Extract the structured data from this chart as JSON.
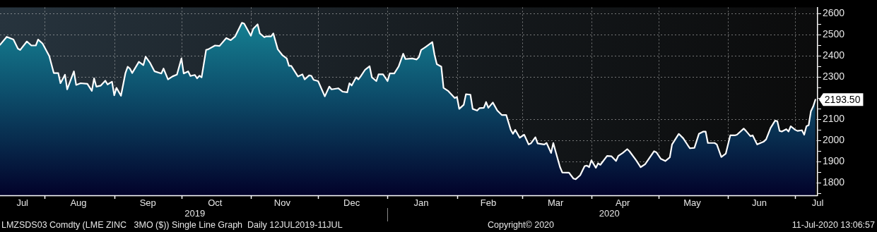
{
  "chart_data": {
    "type": "area",
    "x": [
      "2019-07-12",
      "2019-07-15",
      "2019-07-18",
      "2019-07-20",
      "2019-07-21",
      "2019-07-24",
      "2019-07-26",
      "2019-07-28",
      "2019-07-29",
      "2019-07-31",
      "2019-08-03",
      "2019-08-05",
      "2019-08-07",
      "2019-08-08",
      "2019-08-10",
      "2019-08-11",
      "2019-08-14",
      "2019-08-15",
      "2019-08-17",
      "2019-08-20",
      "2019-08-22",
      "2019-08-23",
      "2019-08-24",
      "2019-08-26",
      "2019-08-28",
      "2019-08-29",
      "2019-08-31",
      "2019-09-01",
      "2019-09-02",
      "2019-09-04",
      "2019-09-06",
      "2019-09-07",
      "2019-09-08",
      "2019-09-09",
      "2019-09-12",
      "2019-09-14",
      "2019-09-15",
      "2019-09-17",
      "2019-09-19",
      "2019-09-22",
      "2019-09-23",
      "2019-09-25",
      "2019-09-27",
      "2019-09-29",
      "2019-10-01",
      "2019-10-02",
      "2019-10-04",
      "2019-10-05",
      "2019-10-07",
      "2019-10-08",
      "2019-10-09",
      "2019-10-10",
      "2019-10-12",
      "2019-10-13",
      "2019-10-16",
      "2019-10-18",
      "2019-10-21",
      "2019-10-23",
      "2019-10-25",
      "2019-10-28",
      "2019-10-29",
      "2019-11-01",
      "2019-11-02",
      "2019-11-04",
      "2019-11-05",
      "2019-11-07",
      "2019-11-08",
      "2019-11-10",
      "2019-11-11",
      "2019-11-13",
      "2019-11-15",
      "2019-11-17",
      "2019-11-18",
      "2019-11-19",
      "2019-11-22",
      "2019-11-24",
      "2019-11-25",
      "2019-11-27",
      "2019-11-28",
      "2019-11-29",
      "2019-12-01",
      "2019-12-04",
      "2019-12-06",
      "2019-12-07",
      "2019-12-10",
      "2019-12-12",
      "2019-12-14",
      "2019-12-15",
      "2019-12-16",
      "2019-12-18",
      "2019-12-19",
      "2019-12-20",
      "2019-12-22",
      "2019-12-24",
      "2019-12-25",
      "2019-12-27",
      "2019-12-28",
      "2019-12-30",
      "2020-01-01",
      "2020-01-02",
      "2020-01-04",
      "2020-01-06",
      "2020-01-08",
      "2020-01-09",
      "2020-01-12",
      "2020-01-14",
      "2020-01-15",
      "2020-01-16",
      "2020-01-18",
      "2020-01-21",
      "2020-01-22",
      "2020-01-23",
      "2020-01-25",
      "2020-01-26",
      "2020-01-28",
      "2020-01-31",
      "2020-02-01",
      "2020-02-02",
      "2020-02-04",
      "2020-02-05",
      "2020-02-07",
      "2020-02-08",
      "2020-02-10",
      "2020-02-11",
      "2020-02-13",
      "2020-02-14",
      "2020-02-15",
      "2020-02-17",
      "2020-02-19",
      "2020-02-21",
      "2020-02-23",
      "2020-02-25",
      "2020-02-26",
      "2020-02-27",
      "2020-02-29",
      "2020-03-02",
      "2020-03-04",
      "2020-03-05",
      "2020-03-07",
      "2020-03-08",
      "2020-03-11",
      "2020-03-12",
      "2020-03-14",
      "2020-03-15",
      "2020-03-16",
      "2020-03-18",
      "2020-03-19",
      "2020-03-22",
      "2020-03-24",
      "2020-03-25",
      "2020-03-27",
      "2020-03-29",
      "2020-03-30",
      "2020-03-31",
      "2020-04-01",
      "2020-04-03",
      "2020-04-04",
      "2020-04-05",
      "2020-04-08",
      "2020-04-10",
      "2020-04-12",
      "2020-04-13",
      "2020-04-15",
      "2020-04-17",
      "2020-04-18",
      "2020-04-21",
      "2020-04-23",
      "2020-04-25",
      "2020-04-29",
      "2020-04-30",
      "2020-05-02",
      "2020-05-04",
      "2020-05-06",
      "2020-05-07",
      "2020-05-10",
      "2020-05-12",
      "2020-05-14",
      "2020-05-15",
      "2020-05-17",
      "2020-05-19",
      "2020-05-21",
      "2020-05-22",
      "2020-05-23",
      "2020-05-26",
      "2020-05-27",
      "2020-05-29",
      "2020-05-31",
      "2020-06-02",
      "2020-06-04",
      "2020-06-05",
      "2020-06-08",
      "2020-06-09",
      "2020-06-11",
      "2020-06-12",
      "2020-06-14",
      "2020-06-17",
      "2020-06-18",
      "2020-06-20",
      "2020-06-22",
      "2020-06-23",
      "2020-06-24",
      "2020-06-25",
      "2020-06-27",
      "2020-06-28",
      "2020-06-29",
      "2020-07-01",
      "2020-07-02",
      "2020-07-04",
      "2020-07-05",
      "2020-07-06",
      "2020-07-07",
      "2020-07-08",
      "2020-07-09",
      "2020-07-10"
    ],
    "series": [
      {
        "color": "#ffffff",
        "values": [
          2452,
          2490,
          2477,
          2434,
          2428,
          2468,
          2449,
          2449,
          2477,
          2458,
          2399,
          2319,
          2319,
          2271,
          2311,
          2242,
          2327,
          2263,
          2271,
          2268,
          2235,
          2294,
          2255,
          2260,
          2283,
          2265,
          2278,
          2214,
          2249,
          2212,
          2319,
          2349,
          2340,
          2319,
          2372,
          2356,
          2396,
          2367,
          2327,
          2317,
          2340,
          2289,
          2303,
          2312,
          2388,
          2317,
          2327,
          2305,
          2310,
          2294,
          2306,
          2299,
          2428,
          2431,
          2449,
          2447,
          2484,
          2474,
          2492,
          2556,
          2552,
          2495,
          2527,
          2549,
          2506,
          2488,
          2492,
          2492,
          2506,
          2431,
          2404,
          2388,
          2353,
          2353,
          2303,
          2313,
          2289,
          2308,
          2306,
          2287,
          2281,
          2209,
          2255,
          2242,
          2247,
          2231,
          2228,
          2271,
          2260,
          2299,
          2289,
          2303,
          2335,
          2351,
          2299,
          2281,
          2313,
          2313,
          2281,
          2317,
          2317,
          2351,
          2410,
          2385,
          2388,
          2383,
          2394,
          2428,
          2442,
          2465,
          2404,
          2361,
          2349,
          2249,
          2235,
          2201,
          2206,
          2150,
          2169,
          2219,
          2217,
          2150,
          2142,
          2153,
          2155,
          2182,
          2155,
          2180,
          2142,
          2121,
          2121,
          2051,
          2032,
          2051,
          2014,
          2028,
          1982,
          1987,
          2016,
          1987,
          1982,
          1989,
          1942,
          1989,
          1950,
          1875,
          1850,
          1849,
          1821,
          1818,
          1837,
          1880,
          1882,
          1875,
          1907,
          1872,
          1893,
          1886,
          1928,
          1926,
          1904,
          1928,
          1942,
          1960,
          1950,
          1907,
          1875,
          1889,
          1950,
          1945,
          1914,
          1904,
          1921,
          1982,
          2032,
          2011,
          1979,
          1964,
          1966,
          2032,
          2043,
          2043,
          1989,
          1989,
          1982,
          1923,
          1939,
          2025,
          2025,
          2028,
          2057,
          2046,
          2021,
          2025,
          1982,
          1996,
          2006,
          2060,
          2094,
          2092,
          2046,
          2043,
          2054,
          2043,
          2068,
          2051,
          2046,
          2049,
          2028,
          2068,
          2073,
          2139,
          2161,
          2193.5
        ]
      }
    ],
    "xlim": [
      "2019-07-12",
      "2020-07-11"
    ],
    "xticks": [
      {
        "value": "2019-07-22",
        "label": "Jul"
      },
      {
        "value": "2019-08-01",
        "label": null
      },
      {
        "value": "2019-08-16",
        "label": "Aug"
      },
      {
        "value": "2019-09-01",
        "label": null
      },
      {
        "value": "2019-09-16",
        "label": "Sep"
      },
      {
        "value": "2019-10-01",
        "label": null
      },
      {
        "value": "2019-10-16",
        "label": "Oct"
      },
      {
        "value": "2019-11-01",
        "label": null
      },
      {
        "value": "2019-11-15",
        "label": "Nov"
      },
      {
        "value": "2019-12-01",
        "label": null
      },
      {
        "value": "2019-12-16",
        "label": "Dec"
      },
      {
        "value": "2020-01-01",
        "label": null
      },
      {
        "value": "2020-01-16",
        "label": "Jan"
      },
      {
        "value": "2020-02-01",
        "label": null
      },
      {
        "value": "2020-02-15",
        "label": "Feb"
      },
      {
        "value": "2020-03-01",
        "label": null
      },
      {
        "value": "2020-03-16",
        "label": "Mar"
      },
      {
        "value": "2020-04-01",
        "label": null
      },
      {
        "value": "2020-04-15",
        "label": "Apr"
      },
      {
        "value": "2020-05-01",
        "label": null
      },
      {
        "value": "2020-05-16",
        "label": "May"
      },
      {
        "value": "2020-06-01",
        "label": null
      },
      {
        "value": "2020-06-15",
        "label": "Jun"
      },
      {
        "value": "2020-07-01",
        "label": null
      },
      {
        "value": "2020-07-11",
        "label": "Jul"
      }
    ],
    "x2lim": [
      "2019-07-12",
      "2020-07-11"
    ],
    "x2ticks": [
      {
        "value": "2019-10-07",
        "label": "2019"
      },
      {
        "value": "2020-01-01",
        "label": null
      },
      {
        "value": "2020-04-09",
        "label": "2020"
      }
    ],
    "ylim": [
      1742,
      2629
    ],
    "yticks": [
      {
        "value": 1750,
        "label": null
      },
      1800,
      {
        "value": 1850,
        "label": null
      },
      1900,
      {
        "value": 1950,
        "label": null
      },
      2000,
      {
        "value": 2050,
        "label": null
      },
      2100,
      {
        "value": 2150,
        "label": null
      },
      {
        "value": 2200,
        "label": null
      },
      {
        "value": 2250,
        "label": null
      },
      2300,
      {
        "value": 2350,
        "label": null
      },
      2400,
      {
        "value": 2450,
        "label": null
      },
      2500,
      {
        "value": 2550,
        "label": null
      },
      2600
    ],
    "grid": true,
    "annotations": [
      {
        "text": "2193.50",
        "x": "2020-07-10",
        "y": 2193.5
      },
      "LMZSDS03 Comdty (LME ZINC   3MO ($)) Single Line Graph  Daily 12JUL2019-11JUL",
      "Copyright© 2020",
      "11-Jul-2020 13:06:57"
    ]
  }
}
